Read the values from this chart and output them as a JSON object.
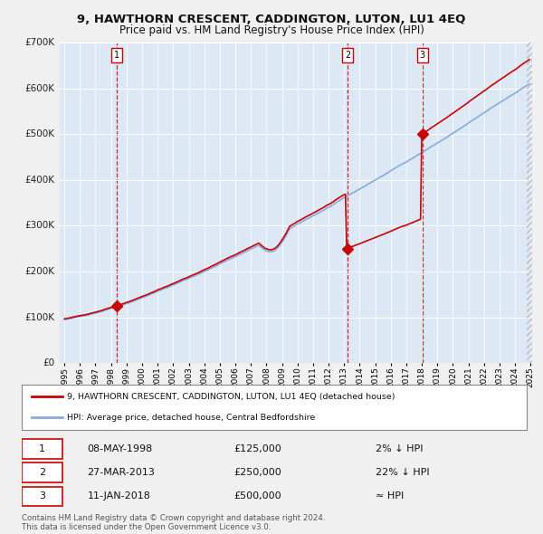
{
  "title": "9, HAWTHORN CRESCENT, CADDINGTON, LUTON, LU1 4EQ",
  "subtitle": "Price paid vs. HM Land Registry's House Price Index (HPI)",
  "bg_color": "#dce9f5",
  "plot_bg_color": "#dce9f5",
  "ylabel_color": "#222222",
  "ylim": [
    0,
    700000
  ],
  "yticks": [
    0,
    100000,
    200000,
    300000,
    400000,
    500000,
    600000,
    700000
  ],
  "ytick_labels": [
    "£0",
    "£100K",
    "£200K",
    "£300K",
    "£400K",
    "£500K",
    "£600K",
    "£700K"
  ],
  "xmin_year": 1995,
  "xmax_year": 2025,
  "xtick_years": [
    1995,
    1996,
    1997,
    1998,
    1999,
    2000,
    2001,
    2002,
    2003,
    2004,
    2005,
    2006,
    2007,
    2008,
    2009,
    2010,
    2011,
    2012,
    2013,
    2014,
    2015,
    2016,
    2017,
    2018,
    2019,
    2020,
    2021,
    2022,
    2023,
    2024,
    2025
  ],
  "sale_dates": [
    1998.36,
    2013.24,
    2018.03
  ],
  "sale_prices": [
    125000,
    250000,
    500000
  ],
  "sale_labels": [
    "1",
    "2",
    "3"
  ],
  "legend_line1": "9, HAWTHORN CRESCENT, CADDINGTON, LUTON, LU1 4EQ (detached house)",
  "legend_line2": "HPI: Average price, detached house, Central Bedfordshire",
  "table_data": [
    [
      "1",
      "08-MAY-1998",
      "£125,000",
      "2% ↓ HPI"
    ],
    [
      "2",
      "27-MAR-2013",
      "£250,000",
      "22% ↓ HPI"
    ],
    [
      "3",
      "11-JAN-2018",
      "£500,000",
      "≈ HPI"
    ]
  ],
  "footer": "Contains HM Land Registry data © Crown copyright and database right 2024.\nThis data is licensed under the Open Government Licence v3.0.",
  "red_line_color": "#cc0000",
  "blue_line_color": "#88aadd",
  "dashed_color": "#cc0000",
  "diamond_color": "#cc0000",
  "grid_color": "#ffffff",
  "hatch_color": "#cccccc"
}
